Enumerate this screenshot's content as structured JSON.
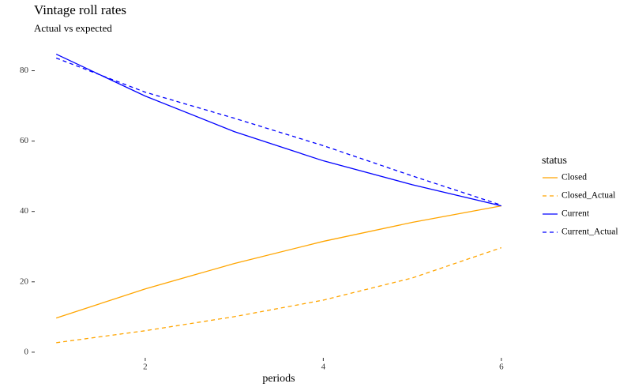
{
  "chart_data": {
    "type": "line",
    "title": "Vintage roll rates",
    "subtitle": "Actual vs expected",
    "x_label": "periods",
    "legend_title": "status",
    "x": [
      1,
      2,
      3,
      4,
      5,
      6
    ],
    "series": [
      {
        "name": "Closed",
        "color": "#FFA500",
        "linestyle": "solid",
        "values": [
          9.7,
          18.0,
          25.2,
          31.5,
          36.9,
          41.6
        ]
      },
      {
        "name": "Closed_Actual",
        "color": "#FFA500",
        "linestyle": "dashed",
        "values": [
          2.7,
          6.1,
          10.1,
          14.8,
          21.1,
          29.7
        ]
      },
      {
        "name": "Current",
        "color": "#0000FF",
        "linestyle": "solid",
        "values": [
          84.7,
          72.8,
          62.7,
          54.4,
          47.6,
          41.6
        ]
      },
      {
        "name": "Current_Actual",
        "color": "#0000FF",
        "linestyle": "dashed",
        "values": [
          83.6,
          73.9,
          66.5,
          58.7,
          50.1,
          41.8
        ]
      }
    ],
    "xlim": [
      0.75,
      6.25
    ],
    "xticks": [
      2,
      4,
      6
    ],
    "ylim": [
      -1.6,
      89.1
    ],
    "yticks": [
      0,
      20,
      40,
      60,
      80
    ],
    "grid": false,
    "legend_position": "right"
  }
}
